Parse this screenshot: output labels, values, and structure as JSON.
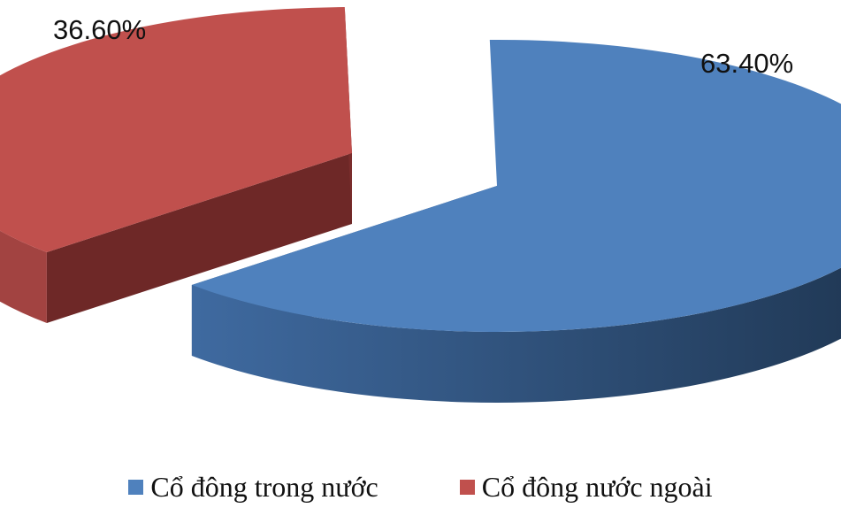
{
  "chart_data": {
    "type": "pie",
    "style": "3d-exploded",
    "slices": [
      {
        "name": "Cổ đông trong nước",
        "value": 63.4,
        "label": "63.40%",
        "color": "#4F81BD"
      },
      {
        "name": "Cổ đông nước ngoài",
        "value": 36.6,
        "label": "36.60%",
        "color": "#C0504D"
      }
    ],
    "legend_position": "bottom"
  }
}
